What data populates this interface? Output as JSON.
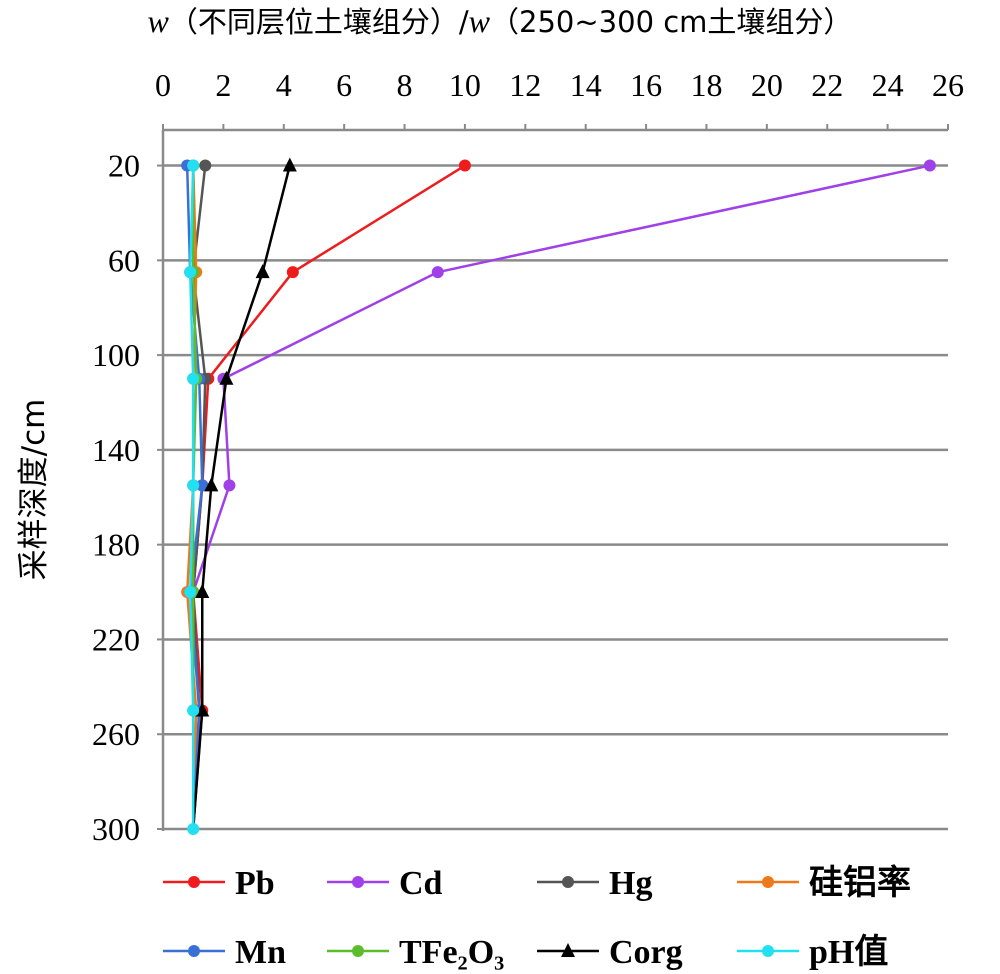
{
  "chart_data": {
    "type": "line",
    "title_prefix_italic": "w",
    "title_mid": "（不同层位土壤组分）/",
    "title_second_italic": "w",
    "title_suffix": "（250~300 cm土壤组分）",
    "ylabel": "采样深度/cm",
    "xlim": [
      0,
      26
    ],
    "ylim": [
      5,
      300
    ],
    "x_ticks": [
      0,
      2,
      4,
      6,
      8,
      10,
      12,
      14,
      16,
      18,
      20,
      22,
      24,
      26
    ],
    "y_ticks": [
      20,
      60,
      100,
      140,
      180,
      220,
      260,
      300
    ],
    "y_inverted": true,
    "grid": "horizontal",
    "legend_position": "bottom",
    "series": [
      {
        "name": "Pb",
        "color": "#ee1c1c",
        "marker": "circle",
        "points": [
          [
            10.0,
            20
          ],
          [
            4.3,
            65
          ],
          [
            1.5,
            110
          ],
          [
            1.3,
            155
          ],
          [
            1.0,
            200
          ],
          [
            1.3,
            250
          ],
          [
            1.0,
            300
          ]
        ]
      },
      {
        "name": "Cd",
        "color": "#a040e8",
        "marker": "circle",
        "points": [
          [
            25.4,
            20
          ],
          [
            9.1,
            65
          ],
          [
            2.0,
            110
          ],
          [
            2.2,
            155
          ],
          [
            1.0,
            200
          ],
          [
            1.2,
            250
          ],
          [
            1.0,
            300
          ]
        ]
      },
      {
        "name": "Hg",
        "color": "#555555",
        "marker": "circle",
        "points": [
          [
            1.4,
            20
          ],
          [
            1.0,
            65
          ],
          [
            1.4,
            110
          ],
          [
            1.3,
            155
          ],
          [
            1.0,
            200
          ],
          [
            1.2,
            250
          ],
          [
            1.0,
            300
          ]
        ]
      },
      {
        "name": "硅铝率",
        "color": "#f07818",
        "marker": "circle",
        "points": [
          [
            1.0,
            20
          ],
          [
            1.1,
            65
          ],
          [
            1.0,
            110
          ],
          [
            1.0,
            155
          ],
          [
            0.8,
            200
          ],
          [
            1.1,
            250
          ],
          [
            1.0,
            300
          ]
        ]
      },
      {
        "name": "Mn",
        "color": "#3a6fd8",
        "marker": "circle",
        "points": [
          [
            0.8,
            20
          ],
          [
            0.9,
            65
          ],
          [
            1.2,
            110
          ],
          [
            1.3,
            155
          ],
          [
            0.9,
            200
          ],
          [
            1.2,
            250
          ],
          [
            1.0,
            300
          ]
        ]
      },
      {
        "name": "TFe₂O₃",
        "color": "#5cbc2c",
        "marker": "circle",
        "points": [
          [
            1.0,
            20
          ],
          [
            1.0,
            65
          ],
          [
            1.1,
            110
          ],
          [
            1.0,
            155
          ],
          [
            1.0,
            200
          ],
          [
            1.0,
            250
          ],
          [
            1.0,
            300
          ]
        ]
      },
      {
        "name": "Corg",
        "color": "#000000",
        "marker": "triangle",
        "points": [
          [
            4.2,
            20
          ],
          [
            3.3,
            65
          ],
          [
            2.1,
            110
          ],
          [
            1.6,
            155
          ],
          [
            1.3,
            200
          ],
          [
            1.3,
            250
          ],
          [
            1.0,
            300
          ]
        ]
      },
      {
        "name": "pH值",
        "color": "#22e0f2",
        "marker": "circle",
        "points": [
          [
            1.0,
            20
          ],
          [
            0.9,
            65
          ],
          [
            1.0,
            110
          ],
          [
            1.0,
            155
          ],
          [
            0.9,
            200
          ],
          [
            1.0,
            250
          ],
          [
            1.0,
            300
          ]
        ]
      }
    ]
  }
}
